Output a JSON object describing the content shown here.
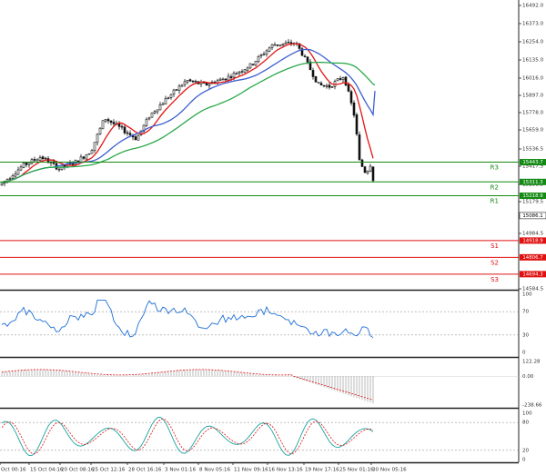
{
  "chart_data": [
    {
      "type": "candlestick",
      "panel": "price",
      "y_ticks": [
        "16492.0",
        "16373.0",
        "16254.0",
        "16135.0",
        "16016.0",
        "15897.0",
        "15778.0",
        "15659.0",
        "15536.5",
        "15417.5",
        "15298.5",
        "15179.5",
        "15086.5",
        "14984.5",
        "14584.5"
      ],
      "current_price_label": "15086.1",
      "levels": [
        {
          "name": "R3",
          "value": 15443.7,
          "label": "15443.7",
          "color": "#138a13"
        },
        {
          "name": "R2",
          "value": 15311.3,
          "label": "15311.3",
          "color": "#138a13"
        },
        {
          "name": "R1",
          "value": 15218.9,
          "label": "15218.9",
          "color": "#138a13"
        },
        {
          "name": "S1",
          "value": 14918.9,
          "label": "14918.9",
          "color": "#e01010"
        },
        {
          "name": "S2",
          "value": 14806.7,
          "label": "14806.7",
          "color": "#e01010"
        },
        {
          "name": "S3",
          "value": 14694.3,
          "label": "14694.3",
          "color": "#e01010"
        }
      ],
      "series": [
        {
          "name": "",
          "type": "moving-average",
          "color": "#e31515"
        },
        {
          "name": "",
          "type": "moving-average",
          "color": "#3d5fd1"
        },
        {
          "name": "",
          "type": "moving-average",
          "color": "#2aa84a"
        }
      ],
      "candle_up_color": "#111111",
      "candle_down_color": "#111111"
    },
    {
      "type": "line",
      "panel": "oscillator-1",
      "y_ticks": [
        "100",
        "70",
        "30",
        "0"
      ],
      "ylim": [
        0,
        100
      ],
      "reference_levels": [
        70,
        30
      ],
      "series": [
        {
          "name": "",
          "color": "#1e6fd6"
        }
      ]
    },
    {
      "type": "histogram",
      "panel": "oscillator-2",
      "y_ticks": [
        "122.28",
        "0.00",
        "-238.66"
      ],
      "ylim": [
        -238.66,
        122.28
      ],
      "series": [
        {
          "name": "",
          "type": "histogram",
          "color": "#b8b8b8"
        },
        {
          "name": "",
          "type": "signal-line",
          "color": "#e01010"
        }
      ]
    },
    {
      "type": "line",
      "panel": "oscillator-3",
      "y_ticks": [
        "100",
        "80",
        "20",
        "0"
      ],
      "ylim": [
        0,
        100
      ],
      "reference_levels": [
        80,
        20
      ],
      "series": [
        {
          "name": "",
          "color": "#1aa3a3"
        },
        {
          "name": "",
          "color": "#e01010"
        }
      ]
    }
  ],
  "x_axis_labels": [
    "Oct 00:16",
    "15 Oct 04:16",
    "20 Oct 08:16",
    "25 Oct 12:16",
    "28 Oct 16:16",
    "3 Nov 01:16",
    "8 Nov 05:16",
    "11 Nov 09:16",
    "16 Nov 13:16",
    "19 Nov 17:16",
    "25 Nov 01:16",
    "30 Nov 05:16"
  ]
}
